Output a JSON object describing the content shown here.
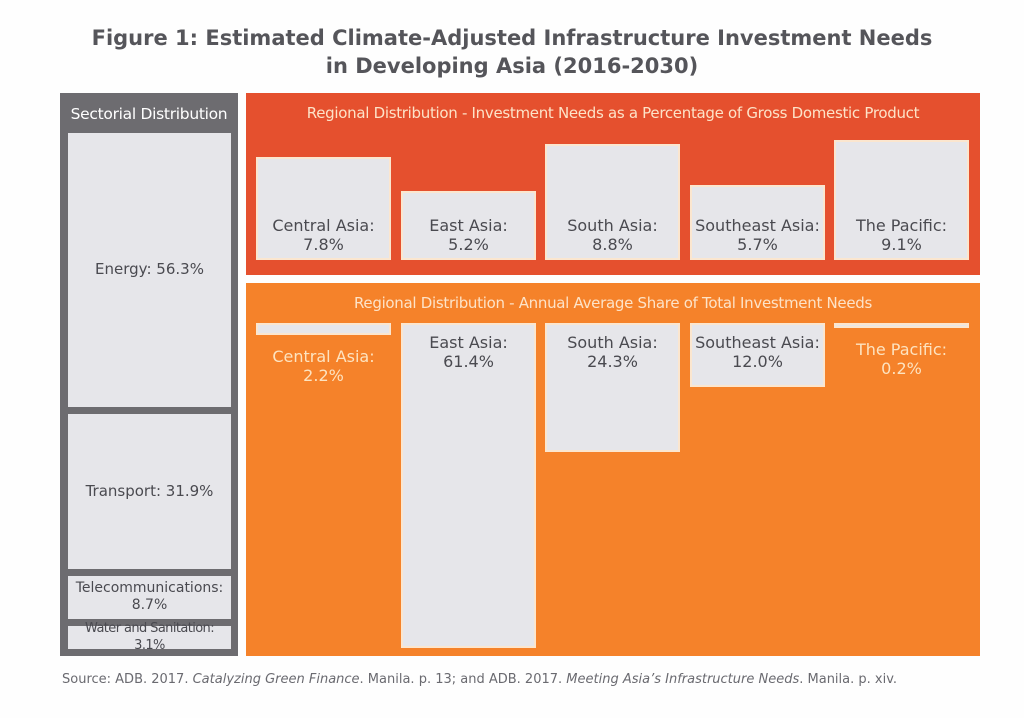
{
  "title_line1": "Figure 1: Estimated Climate-Adjusted Infrastructure Investment Needs",
  "title_line2": "in Developing Asia (2016-2030)",
  "chart_data": [
    {
      "type": "treemap",
      "title": "Sectorial Distribution",
      "categories": [
        "Energy",
        "Transport",
        "Telecommunications",
        "Water and Sanitation"
      ],
      "values": [
        56.3,
        31.9,
        8.7,
        3.1
      ],
      "labels": [
        "Energy: 56.3%",
        "Transport: 31.9%",
        "Telecommunications:",
        "Water and Sanitation: 3.1%"
      ],
      "label2": [
        "",
        "",
        "8.7%",
        ""
      ],
      "color": "#6d6c70"
    },
    {
      "type": "bar",
      "title": "Regional Distribution - Investment Needs as a Percentage of Gross Domestic Product",
      "categories": [
        "Central Asia:",
        "East Asia:",
        "South Asia:",
        "Southeast Asia:",
        "The Pacific:"
      ],
      "values": [
        7.8,
        5.2,
        8.8,
        5.7,
        9.1
      ],
      "value_labels": [
        "7.8%",
        "5.2%",
        "8.8%",
        "5.7%",
        "9.1%"
      ],
      "color": "#e5502e"
    },
    {
      "type": "bar",
      "title": "Regional Distribution - Annual Average Share of Total Investment Needs",
      "categories": [
        "Central Asia:",
        "East Asia:",
        "South Asia:",
        "Southeast Asia:",
        "The Pacific:"
      ],
      "values": [
        2.2,
        61.4,
        24.3,
        12.0,
        0.2
      ],
      "value_labels": [
        "2.2%",
        "61.4%",
        "24.3%",
        "12.0%",
        "0.2%"
      ],
      "color": "#f5822a"
    }
  ],
  "source": {
    "prefix": "Source: ADB. 2017. ",
    "title1": "Catalyzing Green Finance",
    "mid": ". Manila. p. 13; and ADB. 2017. ",
    "title2": "Meeting Asia’s Infrastructure Needs",
    "suffix": ". Manila. p. xiv."
  }
}
